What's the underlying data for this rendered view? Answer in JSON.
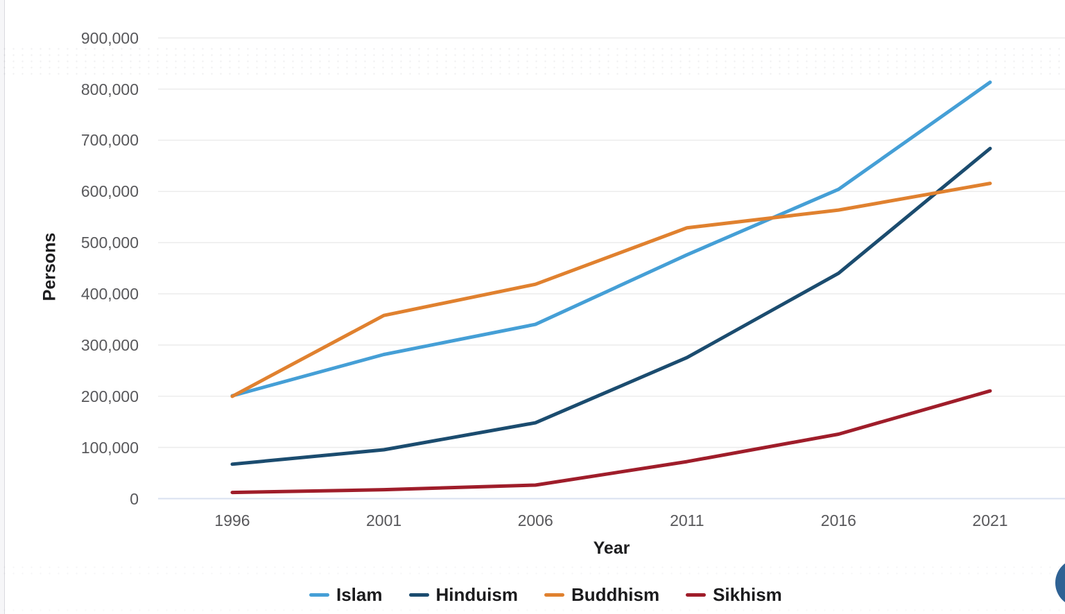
{
  "colors": {
    "background": "#ffffff",
    "gridline": "#ececec",
    "baseline": "#d9e1f0",
    "tick_text": "#58585b",
    "axis_title_text": "#1d1d1f",
    "fab_blue": "#2f6294"
  },
  "fab": {
    "name": "floating-action-button"
  },
  "chart_data": {
    "type": "line",
    "x": [
      1996,
      2001,
      2006,
      2011,
      2016,
      2021
    ],
    "xlabel": "Year",
    "ylabel": "Persons",
    "ylim": [
      0,
      900000
    ],
    "ytick_step": 100000,
    "xtick_labels": [
      "1996",
      "2001",
      "2006",
      "2011",
      "2016",
      "2021"
    ],
    "ytick_labels": [
      "0",
      "100,000",
      "200,000",
      "300,000",
      "400,000",
      "500,000",
      "600,000",
      "700,000",
      "800,000",
      "900,000"
    ],
    "grid": true,
    "legend_position": "bottom",
    "series": [
      {
        "name": "Islam",
        "color": "#459fd6",
        "values": [
          200885,
          281578,
          340392,
          476291,
          604240,
          813392
        ]
      },
      {
        "name": "Hinduism",
        "color": "#1b4c6f",
        "values": [
          67279,
          95473,
          148119,
          275534,
          440300,
          684002
        ]
      },
      {
        "name": "Buddhism",
        "color": "#e0812f",
        "values": [
          199812,
          357813,
          418749,
          528977,
          563674,
          615823
        ]
      },
      {
        "name": "Sikhism",
        "color": "#9f1d2a",
        "values": [
          12017,
          17401,
          26429,
          72296,
          125904,
          210397
        ]
      }
    ]
  }
}
